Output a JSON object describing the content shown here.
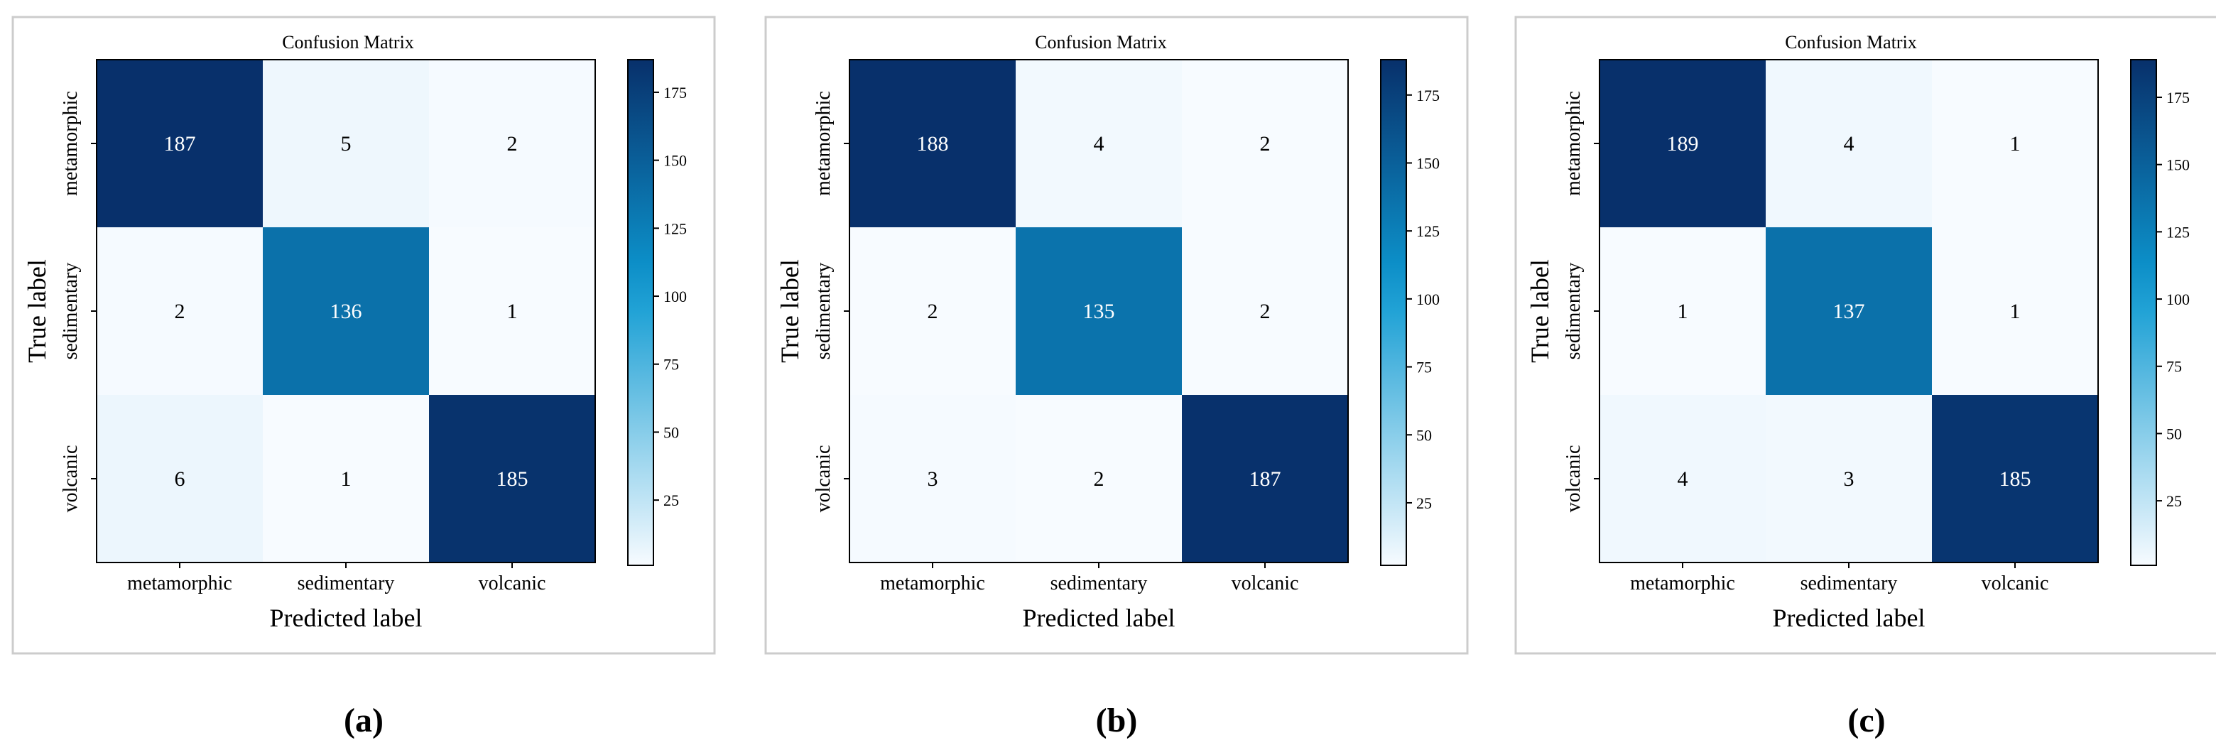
{
  "colors": {
    "low": "#f7fbff",
    "mid": "#0d9ad2",
    "high": "#08306b",
    "frame": "#cccccc",
    "text_dark": "#000000",
    "text_light": "#ffffff"
  },
  "chart_data": [
    {
      "type": "heatmap",
      "panel_label": "(a)",
      "title": "Confusion Matrix",
      "xlabel": "Predicted label",
      "ylabel": "True label",
      "x_categories": [
        "metamorphic",
        "sedimentary",
        "volcanic"
      ],
      "y_categories": [
        "metamorphic",
        "sedimentary",
        "volcanic"
      ],
      "matrix": [
        [
          187,
          5,
          2
        ],
        [
          2,
          136,
          1
        ],
        [
          6,
          1,
          185
        ]
      ],
      "colorbar": {
        "range": [
          1,
          187
        ],
        "ticks": [
          25,
          50,
          75,
          100,
          125,
          150,
          175
        ]
      }
    },
    {
      "type": "heatmap",
      "panel_label": "(b)",
      "title": "Confusion Matrix",
      "xlabel": "Predicted label",
      "ylabel": "True label",
      "x_categories": [
        "metamorphic",
        "sedimentary",
        "volcanic"
      ],
      "y_categories": [
        "metamorphic",
        "sedimentary",
        "volcanic"
      ],
      "matrix": [
        [
          188,
          4,
          2
        ],
        [
          2,
          135,
          2
        ],
        [
          3,
          2,
          187
        ]
      ],
      "colorbar": {
        "range": [
          2,
          188
        ],
        "ticks": [
          25,
          50,
          75,
          100,
          125,
          150,
          175
        ]
      }
    },
    {
      "type": "heatmap",
      "panel_label": "(c)",
      "title": "Confusion Matrix",
      "xlabel": "Predicted label",
      "ylabel": "True label",
      "x_categories": [
        "metamorphic",
        "sedimentary",
        "volcanic"
      ],
      "y_categories": [
        "metamorphic",
        "sedimentary",
        "volcanic"
      ],
      "matrix": [
        [
          189,
          4,
          1
        ],
        [
          1,
          137,
          1
        ],
        [
          4,
          3,
          185
        ]
      ],
      "colorbar": {
        "range": [
          1,
          189
        ],
        "ticks": [
          25,
          50,
          75,
          100,
          125,
          150,
          175
        ]
      }
    }
  ]
}
